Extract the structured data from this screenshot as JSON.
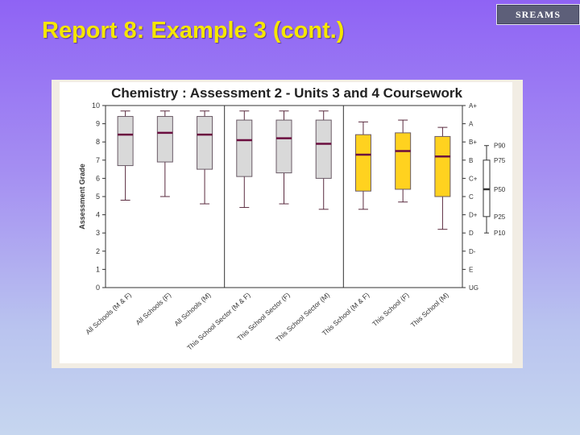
{
  "slide": {
    "title": "Report 8: Example 3 (cont.)",
    "logo": "SREAMS"
  },
  "chart_data": {
    "type": "box",
    "title": "Chemistry : Assessment 2 - Units 3 and 4 Coursework",
    "ylabel": "Assessment Grade",
    "ylim": [
      0,
      10
    ],
    "yticks": [
      0,
      1,
      2,
      3,
      4,
      5,
      6,
      7,
      8,
      9,
      10
    ],
    "grade_labels": [
      "UG",
      "E",
      "D-",
      "D",
      "D+",
      "C",
      "C+",
      "B",
      "B+",
      "A",
      "A+"
    ],
    "grid": false,
    "categories": [
      "All Schools (M & F)",
      "All Schools (F)",
      "All Schools (M)",
      "This School Sector (M & F)",
      "This School Sector (F)",
      "This School Sector (M)",
      "This School (M & F)",
      "This School (F)",
      "This School (M)"
    ],
    "boxes": [
      {
        "p10": 4.8,
        "p25": 6.7,
        "p50": 8.4,
        "p75": 9.4,
        "p90": 9.7
      },
      {
        "p10": 5.0,
        "p25": 6.9,
        "p50": 8.5,
        "p75": 9.4,
        "p90": 9.7
      },
      {
        "p10": 4.6,
        "p25": 6.5,
        "p50": 8.4,
        "p75": 9.4,
        "p90": 9.7
      },
      {
        "p10": 4.4,
        "p25": 6.1,
        "p50": 8.1,
        "p75": 9.2,
        "p90": 9.7
      },
      {
        "p10": 4.6,
        "p25": 6.3,
        "p50": 8.2,
        "p75": 9.2,
        "p90": 9.7
      },
      {
        "p10": 4.3,
        "p25": 6.0,
        "p50": 7.9,
        "p75": 9.2,
        "p90": 9.7
      },
      {
        "p10": 4.3,
        "p25": 5.3,
        "p50": 7.3,
        "p75": 8.4,
        "p90": 9.1
      },
      {
        "p10": 4.7,
        "p25": 5.4,
        "p50": 7.5,
        "p75": 8.5,
        "p90": 9.2
      },
      {
        "p10": 3.2,
        "p25": 5.0,
        "p50": 7.2,
        "p75": 8.3,
        "p90": 8.8
      }
    ],
    "group_colors": [
      "#d9d9d9",
      "#d9d9d9",
      "#d9d9d9",
      "#d9d9d9",
      "#d9d9d9",
      "#d9d9d9",
      "#ffd21f",
      "#ffd21f",
      "#ffd21f"
    ],
    "median_color": "#6b0d3f",
    "whisker_color": "#5a2b3f",
    "legend": {
      "position": "right",
      "labels": [
        "P90",
        "P75",
        "P50",
        "P25",
        "P10"
      ]
    }
  }
}
